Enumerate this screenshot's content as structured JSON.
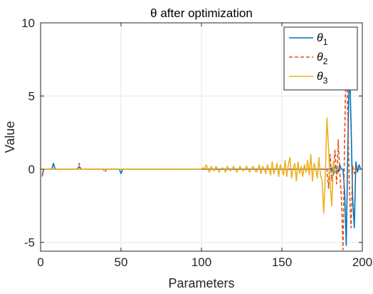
{
  "chart_data": {
    "type": "line",
    "title": "θ after optimization",
    "xlabel": "Parameters",
    "ylabel": "Value",
    "xlim": [
      0,
      200
    ],
    "ylim": [
      -5.6,
      10
    ],
    "xticks": [
      0,
      50,
      100,
      150,
      200
    ],
    "yticks": [
      -5,
      0,
      5,
      10
    ],
    "xtick_labels": [
      "0",
      "50",
      "100",
      "150",
      "200"
    ],
    "ytick_labels": [
      "-5",
      "0",
      "5",
      "10"
    ],
    "grid": true,
    "legend_position": "top-right",
    "x_start": 1,
    "series": [
      {
        "name": "θ1",
        "symbol": "θ",
        "subscript": "1",
        "color": "#0072BD",
        "dash": "solid",
        "values": [
          -0.4,
          0,
          0,
          0,
          0,
          0,
          0,
          0.4,
          0,
          0,
          0,
          0,
          0,
          0,
          0,
          0,
          0,
          0,
          0,
          0,
          0,
          0,
          0,
          0.2,
          0,
          0,
          0,
          0,
          0,
          0,
          0,
          0,
          0,
          0,
          0,
          0,
          0,
          0,
          0,
          0,
          0,
          0,
          0,
          0,
          0,
          0,
          0,
          0,
          0,
          -0.3,
          0,
          0,
          0,
          0,
          0,
          0,
          0,
          0,
          0,
          0,
          0,
          0,
          0,
          0,
          0,
          0,
          0,
          0,
          0,
          0,
          0,
          0,
          0,
          0,
          0,
          0,
          0,
          0,
          0,
          0,
          0,
          0,
          0,
          0,
          0,
          0,
          0,
          0,
          0,
          0,
          0,
          0,
          0,
          0,
          0,
          0,
          0,
          0,
          0,
          0,
          0,
          0,
          0,
          0,
          0,
          0,
          0,
          0,
          0,
          0,
          0,
          0,
          0,
          0,
          0,
          0,
          0,
          0,
          0,
          0,
          0,
          0,
          0,
          0,
          0,
          0,
          0,
          0,
          0,
          0,
          0,
          0,
          0,
          0,
          0,
          0,
          0,
          0,
          0,
          0,
          0,
          0,
          0,
          0,
          0,
          0,
          0,
          0,
          0,
          0,
          0,
          0,
          0,
          0,
          0,
          0,
          0,
          0,
          0,
          0,
          0,
          0,
          0,
          0,
          0,
          0,
          0,
          0,
          0,
          0,
          0,
          0,
          0,
          0,
          0,
          0,
          0,
          0,
          0,
          0,
          0.1,
          -0.4,
          0.2,
          0,
          -0.2,
          0.3,
          0,
          0,
          -1.5,
          -5.2,
          1.5,
          7.5,
          3,
          -2,
          -4,
          0.5,
          -0.2,
          0.3,
          0
        ]
      },
      {
        "name": "θ2",
        "symbol": "θ",
        "subscript": "2",
        "color": "#D95319",
        "dash": "dashed",
        "values": [
          -0.5,
          0,
          0,
          0,
          0,
          0,
          0,
          0,
          0,
          0,
          0,
          0,
          0,
          0,
          0,
          0,
          0,
          0,
          0,
          0,
          0,
          0,
          0,
          0.4,
          0,
          0,
          0,
          0,
          0,
          0,
          0,
          0,
          0,
          0,
          0,
          0,
          0,
          0,
          0,
          -0.2,
          0,
          0,
          0,
          0,
          0,
          0,
          0,
          0,
          0,
          0,
          0,
          0,
          0,
          0,
          0,
          0,
          0,
          0,
          0,
          0,
          0,
          0,
          0,
          0,
          0,
          0,
          0,
          0,
          0,
          0,
          0,
          0,
          0,
          0,
          0,
          0,
          0,
          0,
          0,
          0,
          0,
          0,
          0,
          0,
          0,
          0,
          0,
          0,
          0,
          0,
          0,
          0,
          0,
          0,
          0,
          0,
          0,
          0,
          0,
          0,
          0,
          0,
          0,
          0,
          0,
          0,
          0,
          0,
          0,
          0,
          0,
          0,
          0,
          0,
          0,
          0,
          0,
          0,
          0,
          0,
          0,
          0,
          0,
          0,
          0,
          0,
          0,
          0,
          0,
          0,
          0,
          0,
          0,
          0,
          0,
          0,
          0,
          0,
          0,
          0,
          0,
          0,
          0,
          0,
          0,
          0,
          0,
          0,
          0,
          0,
          0,
          0,
          0,
          0,
          0,
          0,
          0,
          0,
          0,
          0,
          0,
          0,
          0,
          0,
          0,
          0,
          0,
          0,
          0,
          0,
          0,
          0,
          0,
          0,
          0,
          0,
          0,
          0,
          -1.3,
          1,
          -0.8,
          0,
          1.3,
          -1,
          2,
          -0.2,
          -2,
          -5.5,
          2,
          8.1,
          3.5,
          -1.5,
          -4,
          0.2,
          -0.3,
          0.2,
          0
        ]
      },
      {
        "name": "θ3",
        "symbol": "θ",
        "subscript": "3",
        "color": "#EDB120",
        "dash": "solid",
        "values": [
          0,
          0,
          0,
          0,
          0,
          0,
          0,
          0,
          0,
          0,
          0,
          0,
          0,
          0,
          0,
          0,
          0,
          0,
          0,
          0,
          0,
          0,
          0,
          0,
          0,
          0,
          0,
          0,
          0,
          0,
          0,
          0,
          0,
          0,
          0,
          0,
          0,
          0,
          0,
          0,
          0,
          0,
          0,
          0,
          0,
          0,
          0,
          0,
          0,
          0,
          0,
          0,
          0,
          0,
          0,
          0,
          0,
          0,
          0,
          0,
          0,
          0,
          0,
          0,
          0,
          0,
          0,
          0,
          0,
          0,
          0,
          0,
          0,
          0,
          0,
          0,
          0,
          0,
          0,
          0,
          0,
          0,
          0,
          0,
          0,
          0,
          0,
          0,
          0,
          0,
          0,
          0,
          0,
          0,
          0,
          0,
          0,
          0,
          0,
          0,
          0.1,
          0,
          0.3,
          0,
          -0.2,
          0.2,
          0,
          -0.1,
          0.2,
          0,
          -0.2,
          0,
          0.1,
          0,
          -0.2,
          0.2,
          0,
          -0.1,
          0,
          0.2,
          0,
          -0.2,
          0,
          0.2,
          0,
          -0.1,
          0,
          0.2,
          0,
          -0.2,
          0,
          0.2,
          0,
          -0.2,
          0,
          0.3,
          -0.3,
          0.2,
          0,
          -0.3,
          0.3,
          0,
          -0.4,
          0.5,
          -0.3,
          0,
          0.4,
          -0.5,
          0.3,
          0,
          -0.4,
          0.6,
          -0.5,
          0.3,
          0.8,
          -0.6,
          0,
          0.4,
          -0.8,
          0.5,
          -0.3,
          0.2,
          -0.5,
          0.3,
          -0.2,
          0.6,
          -0.4,
          1,
          -0.8,
          0.4,
          0,
          -0.6,
          0.8,
          -0.4,
          -0.8,
          -3,
          -0.5,
          3.5,
          1.5,
          -1,
          -2.5,
          0.5,
          -0.2,
          0,
          0
        ]
      }
    ]
  }
}
